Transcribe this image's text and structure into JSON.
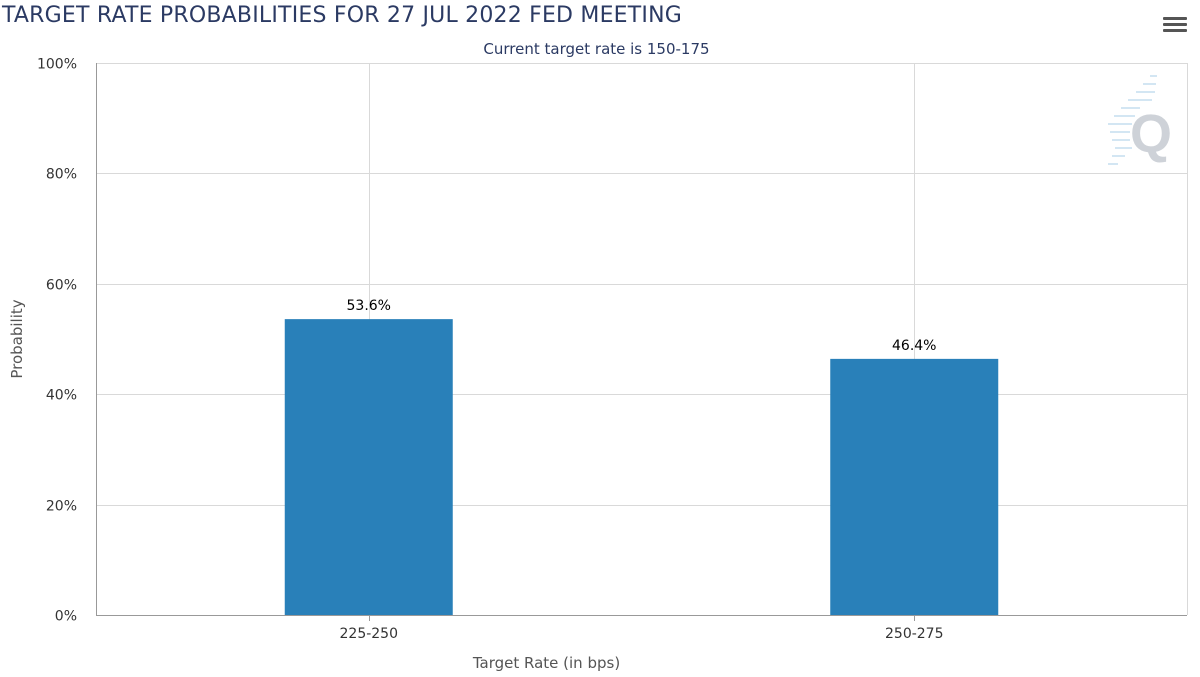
{
  "header": {
    "title": "TARGET RATE PROBABILITIES FOR 27 JUL 2022 FED MEETING",
    "subtitle": "Current target rate is 150-175",
    "menu_icon": "hamburger-menu-icon",
    "watermark_icon": "q-logo-icon"
  },
  "colors": {
    "bar": "#2980b9",
    "title": "#2b3a63",
    "grid": "#d9d9d9"
  },
  "chart_data": {
    "type": "bar",
    "title": "TARGET RATE PROBABILITIES FOR 27 JUL 2022 FED MEETING",
    "subtitle": "Current target rate is 150-175",
    "xlabel": "Target Rate (in bps)",
    "ylabel": "Probability",
    "categories": [
      "225-250",
      "250-275"
    ],
    "values": [
      53.6,
      46.4
    ],
    "data_labels": [
      "53.6%",
      "46.4%"
    ],
    "ylim": [
      0,
      100
    ],
    "yticks": [
      0,
      20,
      40,
      60,
      80,
      100
    ],
    "ytick_labels": [
      "0%",
      "20%",
      "40%",
      "60%",
      "80%",
      "100%"
    ],
    "grid": true,
    "legend": "none"
  }
}
